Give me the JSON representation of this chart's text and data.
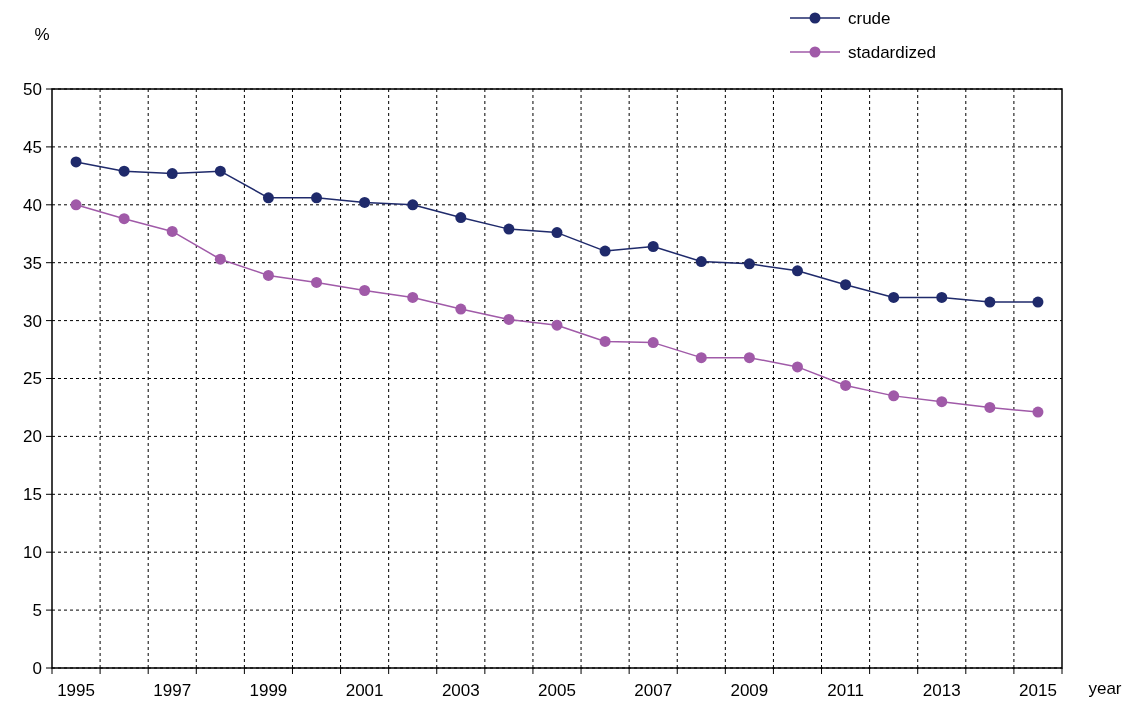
{
  "chart_data": {
    "type": "line",
    "ylabel": "%",
    "xlabel": "year",
    "categories": [
      "1995",
      null,
      "1997",
      null,
      "1999",
      null,
      "2001",
      null,
      "2003",
      null,
      "2005",
      null,
      "2007",
      null,
      "2009",
      null,
      "2011",
      null,
      "2013",
      null,
      "2015"
    ],
    "series": [
      {
        "name": "crude",
        "color": "#1f2a6b",
        "values": [
          43.7,
          42.9,
          42.7,
          42.9,
          40.6,
          40.6,
          40.2,
          40.0,
          38.9,
          37.9,
          37.6,
          36.0,
          36.4,
          35.1,
          34.9,
          34.3,
          33.1,
          32.0,
          32.0,
          31.6,
          31.6
        ]
      },
      {
        "name": "stadardized",
        "color": "#a05aa8",
        "values": [
          40.0,
          38.8,
          37.7,
          35.3,
          33.9,
          33.3,
          32.6,
          32.0,
          31.0,
          30.1,
          29.6,
          28.2,
          28.1,
          26.8,
          26.8,
          26.0,
          24.4,
          23.5,
          23.0,
          22.5,
          22.1
        ]
      }
    ],
    "ylim": [
      0,
      50
    ],
    "yticks": [
      0,
      5,
      10,
      15,
      20,
      25,
      30,
      35,
      40,
      45,
      50
    ],
    "grid": true,
    "legend": "top right",
    "marker": "circle",
    "line_style": "solid"
  }
}
